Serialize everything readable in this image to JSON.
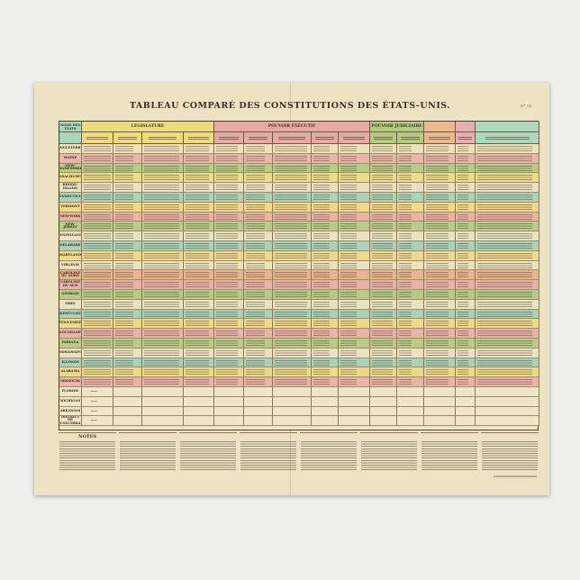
{
  "title": "TABLEAU COMPARÉ DES CONSTITUTIONS DES ÉTATS-UNIS.",
  "plate_number": "N° 14.",
  "headers": {
    "states": "NOMS DES ÉTATS",
    "groups": [
      {
        "label": "LÉGISLATURE",
        "color": "#eedc7a",
        "span": 4
      },
      {
        "label": "POUVOIR EXÉCUTIF",
        "color": "#e8a9a2",
        "span": 5
      },
      {
        "label": "POUVOIR JUDICIAIRE",
        "color": "#b2cc7c",
        "span": 2
      },
      {
        "label": "",
        "color": "#eeb98a",
        "span": 1
      },
      {
        "label": "",
        "color": "#e8adb0",
        "span": 1
      },
      {
        "label": "",
        "color": "#a9d8bc",
        "span": 1
      }
    ]
  },
  "rows": [
    {
      "state": "ANGLETERRE",
      "color": "#eee2bd"
    },
    {
      "state": "MAINE",
      "color": "#e9b6aa"
    },
    {
      "state": "NEW-HAMPSHIRE",
      "color": "#b8cb88"
    },
    {
      "state": "MASSACHUSETTS",
      "color": "#eedb8c"
    },
    {
      "state": "RHODE-ISLAND",
      "color": "#ebe0bf"
    },
    {
      "state": "CONNECTICUT",
      "color": "#aed1b8"
    },
    {
      "state": "VERMONT",
      "color": "#eed98a"
    },
    {
      "state": "NEW-YORK",
      "color": "#e8b4a6"
    },
    {
      "state": "NEW-JERSEY",
      "color": "#b9cc8a"
    },
    {
      "state": "PENSYLVANIE",
      "color": "#ece1c0"
    },
    {
      "state": "DELAWARE",
      "color": "#acd0b8"
    },
    {
      "state": "MARYLAND",
      "color": "#eed98c"
    },
    {
      "state": "VIRGINIE",
      "color": "#ece1c0"
    },
    {
      "state": "CAROLINE DU NORD",
      "color": "#e9b58e"
    },
    {
      "state": "CAROLINE DU SUD",
      "color": "#e8b2aa"
    },
    {
      "state": "GÉORGIE",
      "color": "#b6cb86"
    },
    {
      "state": "OHIO",
      "color": "#ece1c0"
    },
    {
      "state": "KENTUCKY",
      "color": "#acd0b8"
    },
    {
      "state": "TENNESSEE",
      "color": "#eed98a"
    },
    {
      "state": "LOUISIANE",
      "color": "#e8b4a8"
    },
    {
      "state": "INDIANA",
      "color": "#b8cc88"
    },
    {
      "state": "MISSISSIPI",
      "color": "#ece1c0"
    },
    {
      "state": "ILLINOIS",
      "color": "#acd0b8"
    },
    {
      "state": "ALABAMA",
      "color": "#eed98a"
    },
    {
      "state": "MISSOURI",
      "color": "#e8b4a8"
    },
    {
      "state": "FLORIDE",
      "color": "#efe6c8"
    },
    {
      "state": "MICHIGAN",
      "color": "#efe6c8"
    },
    {
      "state": "ARKANSAS",
      "color": "#efe6c8"
    },
    {
      "state": "DISTRICT DE COLUMBIA",
      "color": "#efe6c8"
    }
  ],
  "notes": {
    "heading": "NOTES"
  }
}
